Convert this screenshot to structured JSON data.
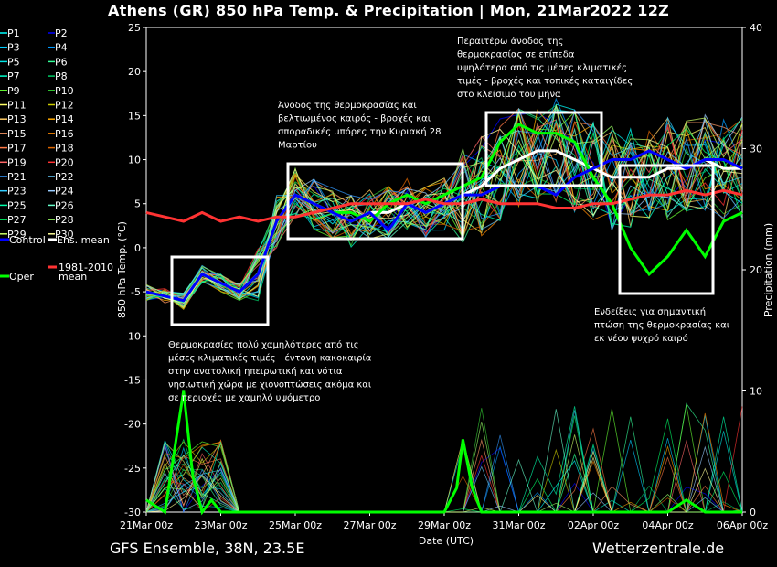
{
  "header": {
    "title": "Athens  (GR)  850 hPa Temp. & Precipitation | Mon, 21Mar2022 12Z"
  },
  "footer": {
    "left": "GFS Ensemble, 38N, 23.5E",
    "right": "Wetterzentrale.de"
  },
  "chart_data": {
    "type": "line",
    "xlabel": "Date (UTC)",
    "ylabel": "850 hPa Temp. (°C)",
    "y2label": "Precipitation (mm)",
    "x_ticks": [
      "21Mar 00z",
      "23Mar 00z",
      "25Mar 00z",
      "27Mar 00z",
      "29Mar 00z",
      "31Mar 00z",
      "02Apr 00z",
      "04Apr 00z",
      "06Apr 00z"
    ],
    "x_range_hours": [
      0,
      384
    ],
    "ylim": [
      -30,
      25
    ],
    "y_ticks": [
      -30,
      -25,
      -20,
      -15,
      -10,
      -5,
      0,
      5,
      10,
      15,
      20,
      25
    ],
    "y2lim": [
      0,
      40
    ],
    "y2_ticks": [
      0,
      10,
      20,
      30,
      40
    ],
    "grid": false,
    "legend": [
      {
        "name": "P1",
        "color": "#00ffff"
      },
      {
        "name": "P2",
        "color": "#0000ff"
      },
      {
        "name": "P3",
        "color": "#00ccff"
      },
      {
        "name": "P4",
        "color": "#0099ff"
      },
      {
        "name": "P5",
        "color": "#00e5e5"
      },
      {
        "name": "P6",
        "color": "#33ff99"
      },
      {
        "name": "P7",
        "color": "#00ffcc"
      },
      {
        "name": "P8",
        "color": "#00cc66"
      },
      {
        "name": "P9",
        "color": "#66ff33"
      },
      {
        "name": "P10",
        "color": "#33cc33"
      },
      {
        "name": "P11",
        "color": "#ffff66"
      },
      {
        "name": "P12",
        "color": "#cccc00"
      },
      {
        "name": "P13",
        "color": "#ffcc66"
      },
      {
        "name": "P14",
        "color": "#ffaa00"
      },
      {
        "name": "P15",
        "color": "#ff9966"
      },
      {
        "name": "P16",
        "color": "#ff8800"
      },
      {
        "name": "P17",
        "color": "#ff7744"
      },
      {
        "name": "P18",
        "color": "#dd6600"
      },
      {
        "name": "P19",
        "color": "#ff6666"
      },
      {
        "name": "P20",
        "color": "#ff3333"
      },
      {
        "name": "P21",
        "color": "#3399ff"
      },
      {
        "name": "P22",
        "color": "#66ccff"
      },
      {
        "name": "P23",
        "color": "#33ccff"
      },
      {
        "name": "P24",
        "color": "#99ccff"
      },
      {
        "name": "P25",
        "color": "#00ffaa"
      },
      {
        "name": "P26",
        "color": "#66ffcc"
      },
      {
        "name": "P27",
        "color": "#00ff66"
      },
      {
        "name": "P28",
        "color": "#99ff66"
      },
      {
        "name": "P29",
        "color": "#ccff66"
      },
      {
        "name": "P30",
        "color": "#ffff99"
      },
      {
        "name": "Control",
        "color": "#0000ff"
      },
      {
        "name": "Ens. mean",
        "color": "#ffffff"
      },
      {
        "name": "Oper",
        "color": "#00ff00"
      },
      {
        "name": "1981-2010 mean",
        "color": "#ff3333"
      }
    ],
    "series": [
      {
        "name": "Ens. mean",
        "color": "#ffffff",
        "x_hours": [
          0,
          24,
          36,
          48,
          60,
          72,
          84,
          96,
          108,
          120,
          132,
          144,
          156,
          168,
          180,
          192,
          204,
          216,
          228,
          240,
          252,
          264,
          276,
          288,
          300,
          312,
          324,
          336,
          348,
          360,
          372,
          384
        ],
        "values": [
          -5,
          -6,
          -3,
          -4,
          -5,
          -3,
          3,
          6,
          5,
          4,
          3,
          4,
          4,
          5,
          4,
          5,
          6,
          7,
          9,
          10,
          11,
          11,
          10,
          9,
          8,
          8,
          8,
          9,
          9,
          10,
          9,
          9
        ]
      },
      {
        "name": "Oper",
        "color": "#00ff00",
        "x_hours": [
          0,
          24,
          36,
          48,
          60,
          72,
          84,
          96,
          108,
          120,
          132,
          144,
          156,
          168,
          180,
          192,
          204,
          216,
          228,
          240,
          252,
          264,
          276,
          288,
          300,
          312,
          324,
          336,
          348,
          360,
          372,
          384
        ],
        "values": [
          -5,
          -6,
          -3,
          -4,
          -5,
          -3,
          3,
          6,
          5,
          4,
          4,
          3,
          5,
          6,
          5,
          6,
          7,
          8,
          12,
          14,
          13,
          13,
          12,
          8,
          5,
          0,
          -3,
          -1,
          2,
          -1,
          3,
          4
        ]
      },
      {
        "name": "Control",
        "color": "#0000ff",
        "x_hours": [
          0,
          24,
          36,
          48,
          60,
          72,
          84,
          96,
          108,
          120,
          132,
          144,
          156,
          168,
          180,
          192,
          204,
          216,
          228,
          240,
          252,
          264,
          276,
          288,
          300,
          312,
          324,
          336,
          348,
          360,
          372,
          384
        ],
        "values": [
          -5,
          -6,
          -3,
          -4,
          -5,
          -3,
          3,
          6,
          5,
          4,
          3,
          4,
          2,
          5,
          4,
          5,
          6,
          6,
          7,
          7,
          7,
          6,
          8,
          9,
          10,
          10,
          11,
          10,
          9,
          10,
          10,
          9
        ]
      },
      {
        "name": "1981-2010 mean",
        "color": "#ff3333",
        "x_hours": [
          0,
          12,
          24,
          36,
          48,
          60,
          72,
          84,
          96,
          108,
          120,
          132,
          144,
          156,
          168,
          180,
          192,
          204,
          216,
          228,
          240,
          252,
          264,
          276,
          288,
          300,
          312,
          324,
          336,
          348,
          360,
          372,
          384
        ],
        "values": [
          4,
          3.5,
          3,
          4,
          3,
          3.5,
          3,
          3.5,
          3.5,
          4,
          4.5,
          5,
          5,
          5,
          5,
          5.5,
          5,
          5,
          5.5,
          5,
          5,
          5,
          4.5,
          4.5,
          5,
          5,
          5.5,
          6,
          6,
          6.5,
          6,
          6.5,
          6
        ]
      }
    ],
    "precipitation": {
      "name": "Oper",
      "color": "#00ff00",
      "x_hours": [
        0,
        12,
        18,
        24,
        30,
        36,
        42,
        48,
        60,
        192,
        200,
        204,
        210,
        216,
        312,
        336,
        348,
        360,
        372,
        384
      ],
      "values": [
        1,
        0,
        5,
        10,
        3,
        0,
        1,
        0,
        0,
        0,
        2,
        6,
        2,
        0,
        0,
        0,
        1,
        0,
        0,
        0
      ]
    },
    "annotations": [
      {
        "text": "Θερμοκρασίες πολύ χαμηλότερες από τις μέσες κλιματικές τιμές - έντονη κακοκαιρία στην ανατολική ηπειρωτική και νότια νησιωτική χώρα με χιονοπτώσεις ακόμα και σε περιοχές με χαμηλό υψόμετρο",
        "lines": [
          "Θερμοκρασίες πολύ χαμηλότερες από τις",
          "μέσες κλιματικές τιμές - έντονη κακοκαιρία",
          "στην ανατολική ηπειρωτική και νότια",
          "νησιωτική χώρα με χιονοπτώσεις ακόμα και",
          "σε περιοχές με χαμηλό υψόμετρο"
        ]
      },
      {
        "text": "Άνοδος της θερμοκρασίας και βελτιωμένος καιρός - βροχές και σποραδικές μπόρες την Κυριακή 28 Μαρτίου",
        "lines": [
          "Άνοδος της θερμοκρασίας και",
          "βελτιωμένος καιρός - βροχές και",
          "σποραδικές μπόρες την Κυριακή 28",
          "Μαρτίου"
        ]
      },
      {
        "text": "Περαιτέρω άνοδος της θερμοκρασίας σε επίπεδα υψηλότερα από τις μέσες κλιματικές τιμές - βροχές και τοπικές καταιγίδες στο κλείσιμο του μήνα",
        "lines": [
          "Περαιτέρω άνοδος της",
          "θερμοκρασίας σε επίπεδα",
          "υψηλότερα από τις μέσες κλιματικές",
          "τιμές - βροχές και τοπικές καταιγίδες",
          "στο κλείσιμο του μήνα"
        ]
      },
      {
        "text": "Ενδείξεις για σημαντική πτώση της θερμοκρασίας και εκ νέου ψυχρό καιρό",
        "lines": [
          "Ενδείξεις για σημαντική",
          "πτώση της θερμοκρασίας και",
          "εκ νέου ψυχρό καιρό"
        ]
      }
    ]
  }
}
